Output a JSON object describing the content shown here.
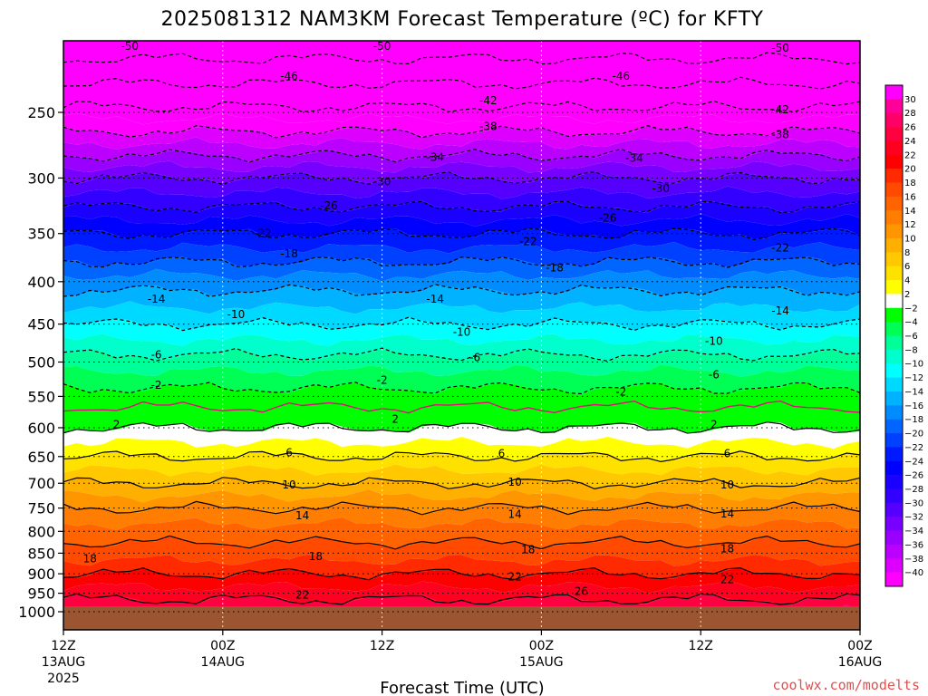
{
  "chart_data": {
    "type": "heatmap",
    "title": "2025081312 NAM3KM Forecast Temperature (ºC) for KFTY",
    "xlabel": "Forecast Time (UTC)",
    "ylabel": "",
    "x_ticks": [
      {
        "label": "12Z",
        "sub": "13AUG",
        "sub2": "2025",
        "hour": 0
      },
      {
        "label": "00Z",
        "sub": "14AUG",
        "sub2": "",
        "hour": 12
      },
      {
        "label": "12Z",
        "sub": "",
        "sub2": "",
        "hour": 24
      },
      {
        "label": "00Z",
        "sub": "15AUG",
        "sub2": "",
        "hour": 36
      },
      {
        "label": "12Z",
        "sub": "",
        "sub2": "",
        "hour": 48
      },
      {
        "label": "00Z",
        "sub": "16AUG",
        "sub2": "",
        "hour": 60
      }
    ],
    "xlim": [
      0,
      60
    ],
    "y_ticks": [
      "250",
      "300",
      "350",
      "400",
      "450",
      "500",
      "550",
      "600",
      "650",
      "700",
      "750",
      "800",
      "850",
      "900",
      "950",
      "1000"
    ],
    "ylim": [
      1050,
      200
    ],
    "y_scale": "log",
    "colorbar": {
      "labels": [
        "30",
        "28",
        "26",
        "24",
        "22",
        "20",
        "18",
        "16",
        "14",
        "12",
        "10",
        "8",
        "6",
        "4",
        "2",
        "−2",
        "−4",
        "−6",
        "−8",
        "−10",
        "−12",
        "−14",
        "−16",
        "−18",
        "−20",
        "−22",
        "−24",
        "−26",
        "−28",
        "−30",
        "−32",
        "−34",
        "−36",
        "−38",
        "−40"
      ],
      "colors": [
        "#ff00ff",
        "#ff0099",
        "#ff0066",
        "#ff0040",
        "#ff0020",
        "#ff0000",
        "#ff2a00",
        "#ff4a00",
        "#ff6400",
        "#ff7d00",
        "#ff9600",
        "#ffaf00",
        "#ffc800",
        "#ffe100",
        "#ffff00",
        "#ffffff",
        "#00ff00",
        "#00ff55",
        "#00ff99",
        "#00ffcc",
        "#00ffff",
        "#00d9ff",
        "#00b2ff",
        "#008cff",
        "#0066ff",
        "#0040ff",
        "#001aff",
        "#0000ff",
        "#1a00ff",
        "#3300ff",
        "#5500ff",
        "#7700ff",
        "#9900ff",
        "#bb00ff",
        "#dd00ff",
        "#ff00ff"
      ]
    },
    "contour_levels": [
      -50,
      -46,
      -42,
      -38,
      -34,
      -30,
      -26,
      -22,
      -18,
      -14,
      -10,
      -6,
      -2,
      2,
      6,
      10,
      14,
      18,
      22,
      26
    ],
    "contour_labels": [
      {
        "text": "-50",
        "x": 5,
        "p": 208
      },
      {
        "text": "-50",
        "x": 24,
        "p": 208
      },
      {
        "text": "-50",
        "x": 54,
        "p": 209
      },
      {
        "text": "-46",
        "x": 17,
        "p": 226
      },
      {
        "text": "-46",
        "x": 42,
        "p": 226
      },
      {
        "text": "-42",
        "x": 32,
        "p": 242
      },
      {
        "text": "-42",
        "x": 54,
        "p": 248
      },
      {
        "text": "-38",
        "x": 32,
        "p": 260
      },
      {
        "text": "-38",
        "x": 54,
        "p": 266
      },
      {
        "text": "-34",
        "x": 28,
        "p": 283
      },
      {
        "text": "-34",
        "x": 43,
        "p": 284
      },
      {
        "text": "-30",
        "x": 24,
        "p": 303
      },
      {
        "text": "-30",
        "x": 45,
        "p": 309
      },
      {
        "text": "-26",
        "x": 20,
        "p": 324
      },
      {
        "text": "-26",
        "x": 41,
        "p": 335
      },
      {
        "text": "-22",
        "x": 15,
        "p": 350
      },
      {
        "text": "-22",
        "x": 35,
        "p": 358
      },
      {
        "text": "-22",
        "x": 54,
        "p": 364
      },
      {
        "text": "-18",
        "x": 17,
        "p": 370
      },
      {
        "text": "-18",
        "x": 37,
        "p": 385
      },
      {
        "text": "-14",
        "x": 7,
        "p": 420
      },
      {
        "text": "-14",
        "x": 28,
        "p": 420
      },
      {
        "text": "-14",
        "x": 54,
        "p": 434
      },
      {
        "text": "-10",
        "x": 13,
        "p": 438
      },
      {
        "text": "-10",
        "x": 30,
        "p": 460
      },
      {
        "text": "-10",
        "x": 49,
        "p": 472
      },
      {
        "text": "-6",
        "x": 7,
        "p": 490
      },
      {
        "text": "-6",
        "x": 31,
        "p": 494
      },
      {
        "text": "-6",
        "x": 49,
        "p": 518
      },
      {
        "text": "-2",
        "x": 7,
        "p": 533
      },
      {
        "text": "-2",
        "x": 24,
        "p": 526
      },
      {
        "text": "-2",
        "x": 42,
        "p": 543
      },
      {
        "text": "2",
        "x": 4,
        "p": 595
      },
      {
        "text": "2",
        "x": 25,
        "p": 586
      },
      {
        "text": "2",
        "x": 49,
        "p": 595
      },
      {
        "text": "6",
        "x": 17,
        "p": 643
      },
      {
        "text": "6",
        "x": 33,
        "p": 645
      },
      {
        "text": "6",
        "x": 50,
        "p": 645
      },
      {
        "text": "10",
        "x": 17,
        "p": 703
      },
      {
        "text": "10",
        "x": 34,
        "p": 698
      },
      {
        "text": "10",
        "x": 50,
        "p": 703
      },
      {
        "text": "14",
        "x": 18,
        "p": 766
      },
      {
        "text": "14",
        "x": 34,
        "p": 763
      },
      {
        "text": "14",
        "x": 50,
        "p": 762
      },
      {
        "text": "18",
        "x": 2,
        "p": 863
      },
      {
        "text": "18",
        "x": 19,
        "p": 858
      },
      {
        "text": "18",
        "x": 35,
        "p": 842
      },
      {
        "text": "18",
        "x": 50,
        "p": 840
      },
      {
        "text": "22",
        "x": 18,
        "p": 955
      },
      {
        "text": "22",
        "x": 34,
        "p": 908
      },
      {
        "text": "22",
        "x": 50,
        "p": 915
      },
      {
        "text": "26",
        "x": 39,
        "p": 945
      }
    ],
    "terrain_color": "#9b5530"
  },
  "credit": "coolwx.com/modelts"
}
